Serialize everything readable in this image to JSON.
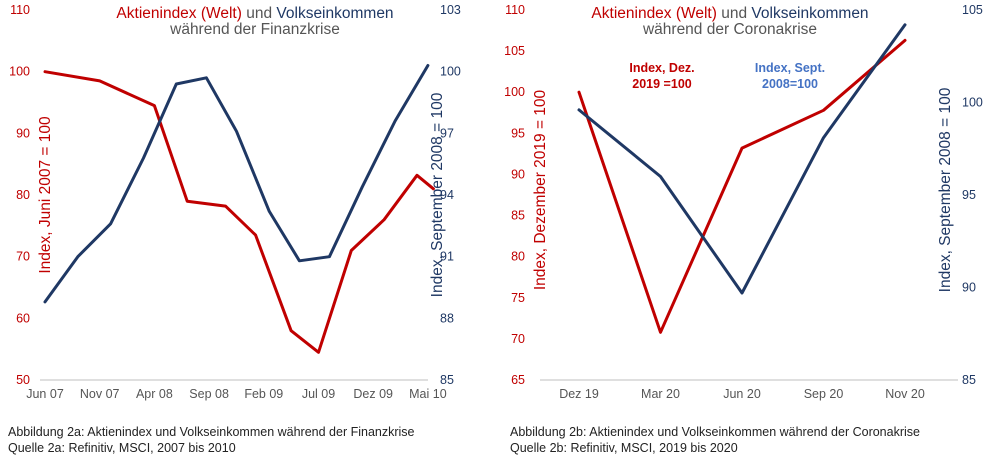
{
  "colors": {
    "red": "#c00000",
    "blue": "#1f3864",
    "annotation_blue": "#4472c4",
    "axis": "#bfbfbf",
    "text": "#555555"
  },
  "chart_data": [
    {
      "type": "line",
      "title_part1": "Aktienindex (Welt)",
      "title_part2": "und",
      "title_part3": "Volkseinkommen",
      "subtitle": "während der Finanzkrise",
      "categories": [
        "Jun 07",
        "Nov 07",
        "Apr 08",
        "Sep 08",
        "Feb 09",
        "Jul 09",
        "Dez 09",
        "Mai 10"
      ],
      "y_left_label": "Index, Juni 2007 = 100",
      "y_right_label": "Index, September 2008 = 100",
      "y_left_ticks": [
        "110",
        "100",
        "90",
        "80",
        "70",
        "60",
        "50"
      ],
      "y_right_ticks": [
        "103",
        "100",
        "97",
        "94",
        "91",
        "88",
        "85"
      ],
      "ylim_left": [
        50,
        110
      ],
      "ylim_right": [
        85,
        103
      ],
      "series": [
        {
          "name": "Aktienindex (Welt)",
          "axis": "left",
          "color": "red",
          "x": [
            0,
            1,
            2,
            2.6,
            3.3,
            3.85,
            4.5,
            5,
            5.6,
            6.2,
            6.8,
            7.1
          ],
          "values": [
            100,
            98.5,
            94.5,
            79,
            78.2,
            73.5,
            58,
            54.5,
            71,
            76,
            83.2,
            81
          ]
        },
        {
          "name": "Volkseinkommen",
          "axis": "right",
          "color": "blue",
          "x": [
            0,
            0.6,
            1.2,
            1.8,
            2.4,
            2.95,
            3.5,
            4.1,
            4.65,
            5.2,
            5.8,
            6.4,
            7.0
          ],
          "values": [
            88.8,
            91.0,
            92.6,
            95.8,
            99.4,
            99.7,
            97.1,
            93.2,
            90.8,
            91.0,
            94.4,
            97.6,
            100.3
          ]
        }
      ]
    },
    {
      "type": "line",
      "title_part1": "Aktienindex (Welt)",
      "title_part2": "und",
      "title_part3": "Volkseinkommen",
      "subtitle": "während der Coronakrise",
      "categories": [
        "Dez 19",
        "Mar 20",
        "Jun 20",
        "Sep 20",
        "Nov 20"
      ],
      "y_left_label": "Index, Dezember 2019 = 100",
      "y_right_label": "Index, September 2008 = 100",
      "y_left_ticks": [
        "110",
        "105",
        "100",
        "95",
        "90",
        "85",
        "80",
        "75",
        "70",
        "65"
      ],
      "y_right_ticks": [
        "105",
        "100",
        "95",
        "90",
        "85"
      ],
      "ylim_left": [
        65,
        110
      ],
      "ylim_right": [
        85,
        105
      ],
      "annotations": [
        {
          "text": [
            "Index, Dez.",
            "2019 =100"
          ],
          "color": "red"
        },
        {
          "text": [
            "Index, Sept.",
            "2008=100"
          ],
          "color": "annotation_blue"
        }
      ],
      "series": [
        {
          "name": "Aktienindex (Welt)",
          "axis": "left",
          "color": "red",
          "x": [
            0,
            1,
            2,
            3,
            4
          ],
          "values": [
            100,
            70.8,
            93.2,
            97.8,
            106.3
          ]
        },
        {
          "name": "Volkseinkommen",
          "axis": "right",
          "color": "blue",
          "x": [
            0,
            1,
            2,
            3,
            4
          ],
          "values": [
            99.6,
            96.0,
            89.7,
            98.1,
            104.2
          ]
        }
      ]
    }
  ],
  "captions": [
    {
      "line1": "Abbildung 2a: Aktienindex und Volkseinkommen während der Finanzkrise",
      "line2": "Quelle 2a: Refinitiv, MSCI, 2007 bis 2010"
    },
    {
      "line1": "Abbildung 2b: Aktienindex und Volkseinkommen während der Coronakrise",
      "line2": "Quelle 2b: Refinitiv, MSCI, 2019 bis 2020"
    }
  ]
}
